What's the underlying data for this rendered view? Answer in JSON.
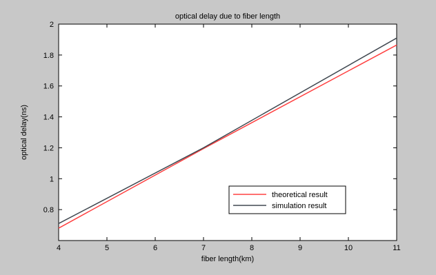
{
  "chart_data": {
    "type": "line",
    "title": "optical delay due to fiber length",
    "xlabel": "fiber length(km)",
    "ylabel": "optical delay(ns)",
    "xlim": [
      4,
      11
    ],
    "ylim": [
      0.6,
      2.0
    ],
    "xticks": [
      "4",
      "5",
      "6",
      "7",
      "8",
      "9",
      "10",
      "11"
    ],
    "yticks": [
      "0.8",
      "1",
      "1.2",
      "1.4",
      "1.6",
      "1.8",
      "2"
    ],
    "grid": false,
    "legend_position": "bottom-right",
    "series": [
      {
        "name": "theoretical result",
        "color": "#ff4040",
        "x": [
          4,
          7,
          11
        ],
        "y": [
          0.68,
          1.195,
          1.865
        ]
      },
      {
        "name": "simulation result",
        "color": "#404850",
        "x": [
          4,
          7,
          11
        ],
        "y": [
          0.71,
          1.2,
          1.91
        ]
      }
    ]
  }
}
